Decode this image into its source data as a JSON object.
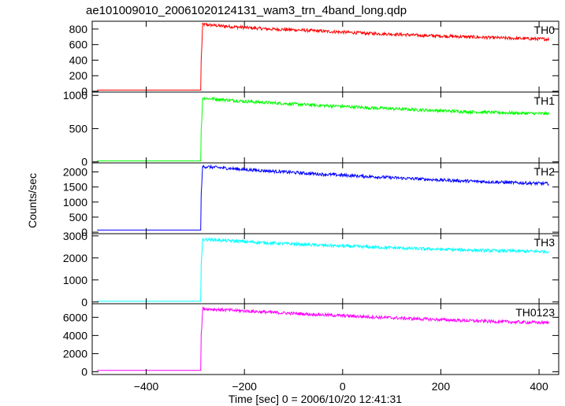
{
  "chart_data": {
    "type": "line",
    "title": "ae101009010_20061020124131_wam3_trn_4band_long.qdp",
    "xlabel": "Time [sec] 0 = 2006/10/20 12:41:31",
    "ylabel": "Counts/sec",
    "xlim": [
      -510,
      440
    ],
    "xticks": [
      -400,
      -200,
      0,
      200,
      400
    ],
    "grid": false,
    "panels": [
      {
        "name": "TH0",
        "color": "#ff0000",
        "ylim": [
          -10,
          900
        ],
        "yticks": [
          0,
          200,
          400,
          600,
          800
        ],
        "series": [
          {
            "name": "TH0",
            "x": [
              -500,
              -289,
              -289,
              -285,
              -250,
              -200,
              -150,
              -100,
              -50,
              0,
              50,
              100,
              150,
              200,
              250,
              300,
              350,
              420
            ],
            "y": [
              15,
              15,
              250,
              860,
              840,
              820,
              800,
              790,
              775,
              760,
              745,
              735,
              720,
              710,
              700,
              690,
              680,
              670
            ]
          }
        ]
      },
      {
        "name": "TH1",
        "color": "#00ff00",
        "ylim": [
          -15,
          1050
        ],
        "yticks": [
          0,
          500,
          1000
        ],
        "series": [
          {
            "name": "TH1",
            "x": [
              -500,
              -289,
              -289,
              -285,
              -250,
              -200,
              -150,
              -100,
              -50,
              0,
              50,
              100,
              150,
              200,
              250,
              300,
              350,
              420
            ],
            "y": [
              15,
              15,
              300,
              960,
              940,
              910,
              890,
              870,
              850,
              835,
              815,
              800,
              785,
              770,
              755,
              745,
              735,
              725
            ]
          }
        ]
      },
      {
        "name": "TH2",
        "color": "#0000ff",
        "ylim": [
          -50,
          2300
        ],
        "yticks": [
          0,
          500,
          1000,
          1500,
          2000
        ],
        "series": [
          {
            "name": "TH2",
            "x": [
              -500,
              -289,
              -289,
              -285,
              -250,
              -200,
              -150,
              -100,
              -50,
              0,
              50,
              100,
              150,
              200,
              250,
              300,
              350,
              420
            ],
            "y": [
              70,
              70,
              1000,
              2180,
              2140,
              2080,
              2030,
              1980,
              1930,
              1890,
              1850,
              1810,
              1770,
              1730,
              1700,
              1670,
              1640,
              1610
            ]
          }
        ]
      },
      {
        "name": "TH3",
        "color": "#00ffff",
        "ylim": [
          -80,
          3100
        ],
        "yticks": [
          0,
          1000,
          2000,
          3000
        ],
        "series": [
          {
            "name": "TH3",
            "x": [
              -500,
              -289,
              -289,
              -285,
              -250,
              -200,
              -150,
              -100,
              -50,
              0,
              50,
              100,
              150,
              200,
              250,
              300,
              350,
              420
            ],
            "y": [
              30,
              30,
              1300,
              2850,
              2800,
              2740,
              2680,
              2630,
              2580,
              2540,
              2500,
              2460,
              2420,
              2390,
              2360,
              2330,
              2310,
              2290
            ]
          }
        ]
      },
      {
        "name": "TH0123",
        "color": "#ff00ff",
        "ylim": [
          -300,
          7500
        ],
        "yticks": [
          0,
          2000,
          4000,
          6000
        ],
        "series": [
          {
            "name": "TH0123",
            "x": [
              -500,
              -289,
              -289,
              -285,
              -250,
              -200,
              -150,
              -100,
              -50,
              0,
              50,
              100,
              150,
              200,
              250,
              300,
              350,
              420
            ],
            "y": [
              150,
              150,
              3000,
              6950,
              6850,
              6700,
              6560,
              6430,
              6300,
              6180,
              6060,
              5950,
              5840,
              5740,
              5640,
              5560,
              5480,
              5400
            ]
          }
        ]
      }
    ]
  }
}
